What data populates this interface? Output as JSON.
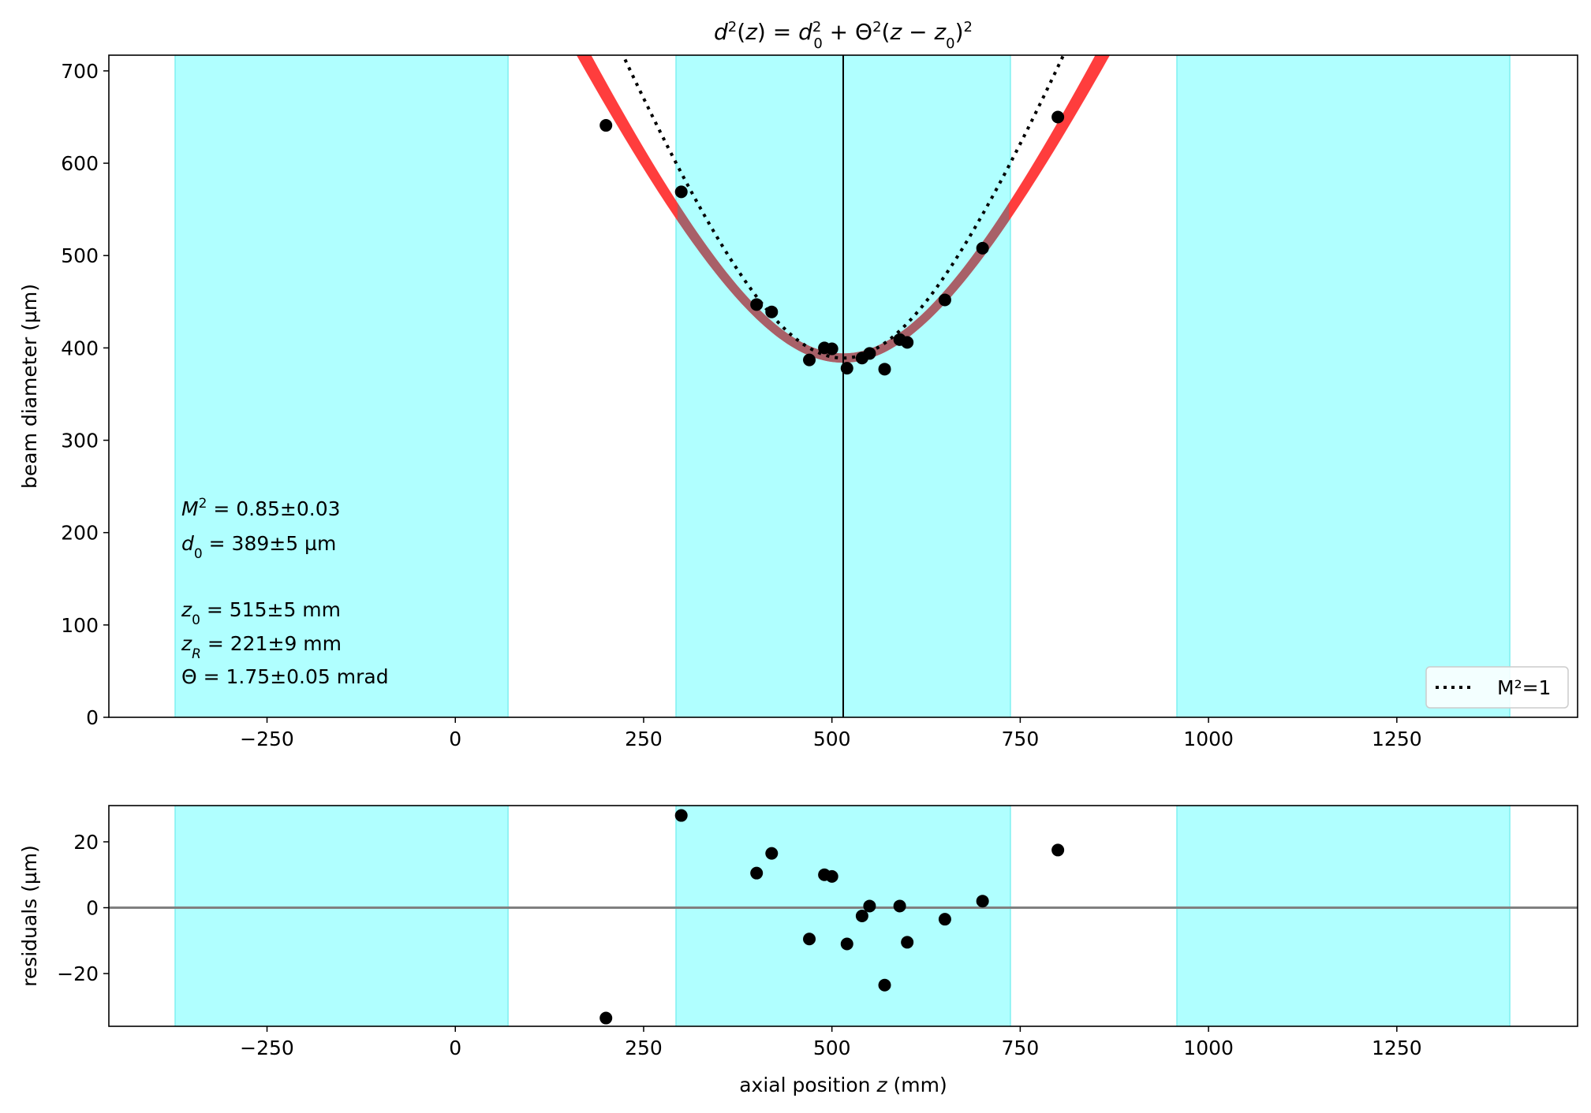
{
  "chart_data": [
    {
      "type": "scatter",
      "title": "d²(z) = d₀² + Θ²(z − z₀)²",
      "title_parts": {
        "d": "d",
        "sq": "2",
        "z": "z",
        "zero": "0",
        "theta": "Θ"
      },
      "xlabel": "",
      "ylabel": "beam diameter (µm)",
      "xlim": [
        -460,
        1490
      ],
      "ylim": [
        0,
        717
      ],
      "xticks": [
        -250,
        0,
        250,
        500,
        750,
        1000,
        1250
      ],
      "yticks": [
        0,
        100,
        200,
        300,
        400,
        500,
        600,
        700
      ],
      "grid": false,
      "shaded_regions": [
        [
          -372,
          70
        ],
        [
          293,
          737
        ],
        [
          958,
          1400
        ]
      ],
      "shade_color": "#b0ffff",
      "fit_band": {
        "z0": 515,
        "d0_low": 384,
        "d0_high": 394,
        "theta_low": 1.71,
        "theta_high": 1.79,
        "color": "#ff3333",
        "overlap_color": "#a86068"
      },
      "m2_one_curve": {
        "z0": 515,
        "d0": 389,
        "theta": 2.06,
        "label": "M²=1"
      },
      "waist_line_z": 515,
      "points": {
        "x": [
          200,
          300,
          400,
          420,
          470,
          490,
          500,
          520,
          540,
          550,
          570,
          590,
          600,
          650,
          700,
          800
        ],
        "y": [
          641,
          569,
          447,
          439,
          387,
          400,
          399,
          378,
          389,
          394,
          377,
          409,
          406,
          452,
          508,
          650
        ]
      },
      "legend": {
        "position": "lower-right",
        "entries": [
          "M²=1"
        ]
      },
      "annotations": {
        "m2_label": "M",
        "m2_sup": "2",
        "m2_value": " = 0.85±0.03",
        "d0_label": "d",
        "d0_sub": "0",
        "d0_value": " = 389±5 µm",
        "z0_label": "z",
        "z0_sub": "0",
        "z0_value": "  = 515±5 mm",
        "zr_label": "z",
        "zr_sub": "R",
        "zr_value": "  = 221±9 mm",
        "theta_label": "Θ",
        "theta_value": "  = 1.75±0.05 mrad"
      }
    },
    {
      "type": "scatter",
      "xlabel_prefix": "axial position ",
      "xlabel_var": "z",
      "xlabel_suffix": " (mm)",
      "ylabel": "residuals (µm)",
      "xlim": [
        -460,
        1490
      ],
      "ylim": [
        -36,
        31
      ],
      "xticks": [
        -250,
        0,
        250,
        500,
        750,
        1000,
        1250
      ],
      "yticks": [
        -20,
        0,
        20
      ],
      "grid": false,
      "shaded_regions": [
        [
          -372,
          70
        ],
        [
          293,
          737
        ],
        [
          958,
          1400
        ]
      ],
      "zero_line_color": "#808080",
      "points": {
        "x": [
          200,
          300,
          400,
          420,
          470,
          490,
          500,
          520,
          540,
          550,
          570,
          590,
          600,
          650,
          700,
          800
        ],
        "y": [
          -33.5,
          28,
          10.5,
          16.5,
          -9.5,
          10,
          9.5,
          -11,
          -2.5,
          0.5,
          -23.5,
          0.5,
          -10.5,
          -3.5,
          2,
          17.5
        ]
      }
    }
  ]
}
